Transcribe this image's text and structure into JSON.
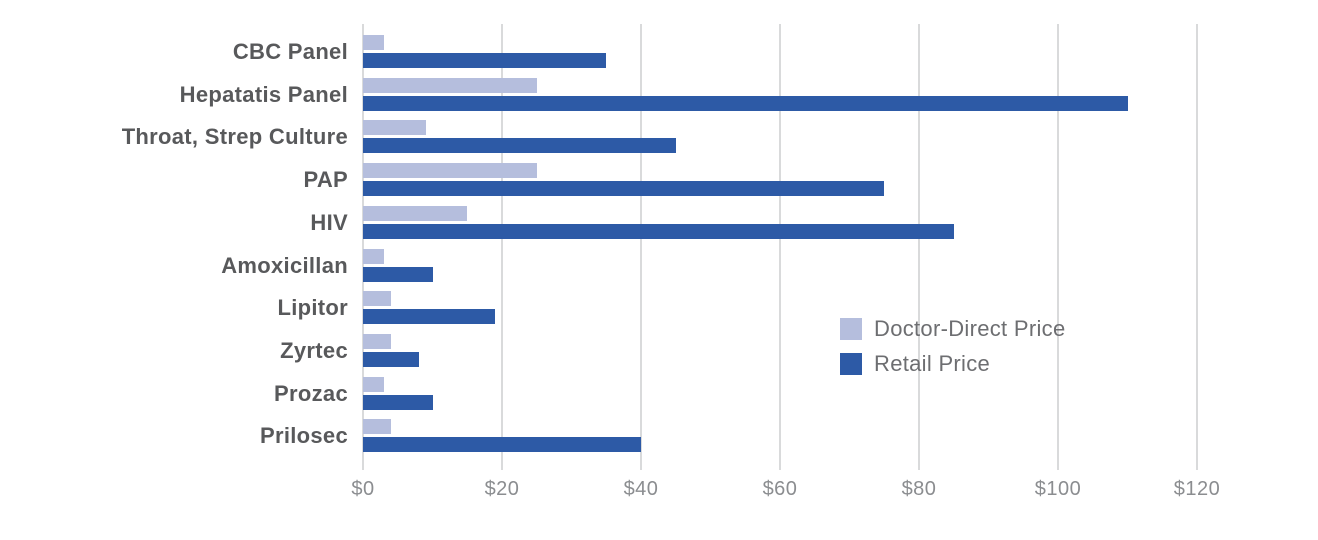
{
  "chart_data": {
    "type": "bar",
    "orientation": "horizontal",
    "title": "",
    "xlabel": "",
    "ylabel": "",
    "categories": [
      "CBC Panel",
      "Hepatatis Panel",
      "Throat, Strep Culture",
      "PAP",
      "HIV",
      "Amoxicillan",
      "Lipitor",
      "Zyrtec",
      "Prozac",
      "Prilosec"
    ],
    "series": [
      {
        "name": "Doctor-Direct Price",
        "color": "#b5bedd",
        "values": [
          3,
          25,
          9,
          25,
          15,
          3,
          4,
          4,
          3,
          4
        ]
      },
      {
        "name": "Retail Price",
        "color": "#2d5aa6",
        "values": [
          35,
          110,
          45,
          75,
          85,
          10,
          19,
          8,
          10,
          40
        ]
      }
    ],
    "x_axis": {
      "min": 0,
      "max": 120,
      "tick_values": [
        0,
        20,
        40,
        60,
        80,
        100,
        120
      ],
      "tick_labels": [
        "$0",
        "$20",
        "$40",
        "$60",
        "$80",
        "$100",
        "$120"
      ]
    },
    "grid": "vertical-only",
    "legend": {
      "position": "middle-right",
      "entries": [
        {
          "label": "Doctor-Direct Price",
          "color": "#b5bedd"
        },
        {
          "label": "Retail Price",
          "color": "#2d5aa6"
        }
      ]
    }
  },
  "colors": {
    "doctor_direct_bar": "#b5bedd",
    "retail_bar": "#2d5aa6",
    "category_label": "#58595b",
    "axis_tick_label": "#8b8d90",
    "legend_label": "#6d6e71",
    "gridline": "#d9dadb",
    "background": "#ffffff"
  }
}
